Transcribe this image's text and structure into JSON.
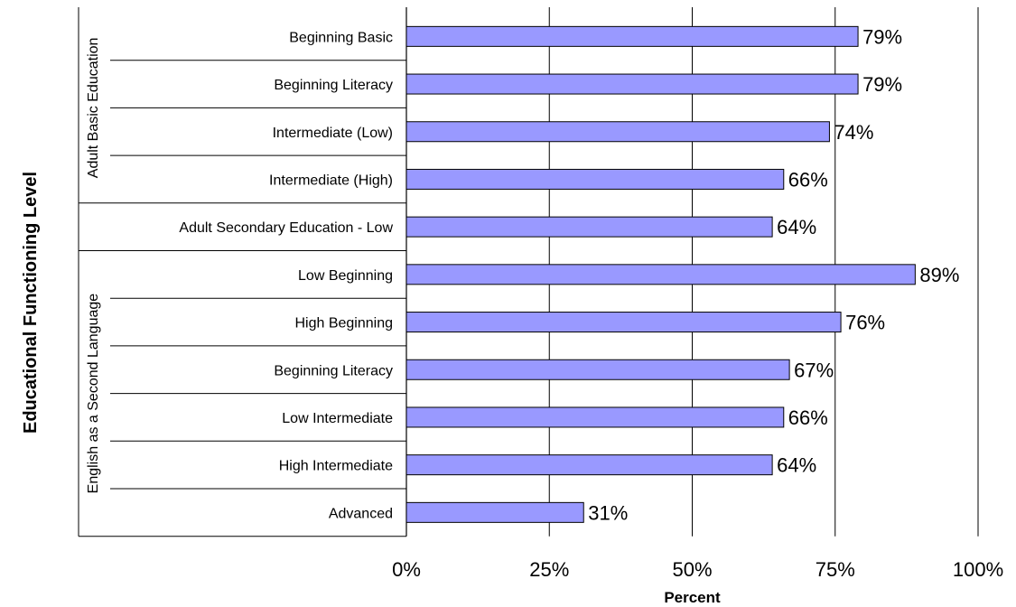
{
  "chart_data": {
    "type": "bar",
    "orientation": "horizontal",
    "title": "",
    "xlabel": "Percent",
    "ylabel": "Educational Functioning Level",
    "xlim": [
      0,
      100
    ],
    "xticks": [
      0,
      25,
      50,
      75,
      100
    ],
    "xtick_labels": [
      "0%",
      "25%",
      "50%",
      "75%",
      "100%"
    ],
    "grid": "vertical",
    "bar_color": "#9999ff",
    "groups": [
      {
        "label": "Adult Basic Education",
        "span": [
          0,
          3
        ]
      },
      {
        "label": "",
        "span": [
          4,
          4
        ]
      },
      {
        "label": "English as a Second Language",
        "span": [
          5,
          10
        ]
      }
    ],
    "categories": [
      "Beginning Basic",
      "Beginning Literacy",
      "Intermediate (Low)",
      "Intermediate (High)",
      "Adult Secondary Education - Low",
      "Low Beginning",
      "High Beginning",
      "Beginning Literacy",
      "Low Intermediate",
      "High Intermediate",
      "Advanced"
    ],
    "values": [
      79,
      79,
      74,
      66,
      64,
      89,
      76,
      67,
      66,
      64,
      31
    ],
    "data_labels": [
      "79%",
      "79%",
      "74%",
      "66%",
      "64%",
      "89%",
      "76%",
      "67%",
      "66%",
      "64%",
      "31%"
    ]
  }
}
